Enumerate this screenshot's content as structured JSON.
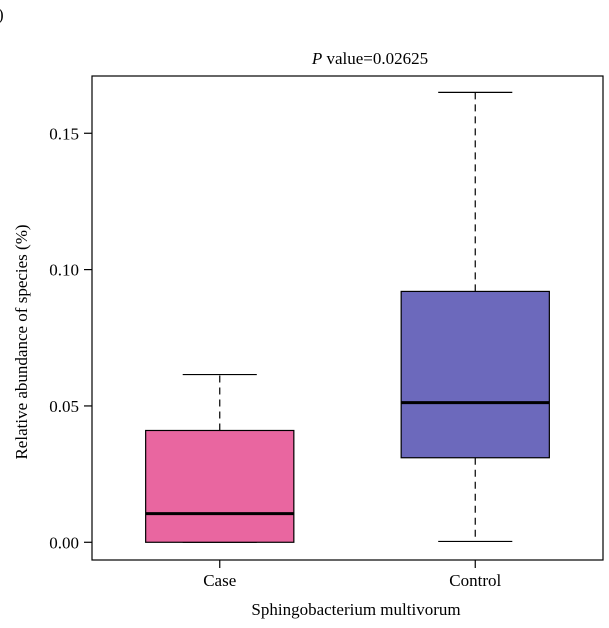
{
  "panel_label": ")",
  "chart_data": {
    "type": "box",
    "title_prefix": "P",
    "title_suffix": " value=0.02625",
    "xlabel": "Sphingobacterium multivorum",
    "ylabel": "Relative abundance of species (%)",
    "ylim": [
      -0.0065,
      0.171
    ],
    "yticks": [
      0.0,
      0.05,
      0.1,
      0.15
    ],
    "ytick_labels": [
      "0.00",
      "0.05",
      "0.10",
      "0.15"
    ],
    "categories": [
      "Case",
      "Control"
    ],
    "boxes": [
      {
        "category": "Case",
        "whisker_low": 0.0,
        "q1": 0.0,
        "median": 0.0105,
        "q3": 0.041,
        "whisker_high": 0.0615,
        "color": "#E966A0"
      },
      {
        "category": "Control",
        "whisker_low": 0.0003,
        "q1": 0.031,
        "median": 0.0512,
        "q3": 0.092,
        "whisker_high": 0.165,
        "color": "#6C69BC"
      }
    ],
    "grid": false,
    "legend": "none"
  }
}
